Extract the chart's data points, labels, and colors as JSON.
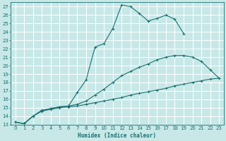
{
  "xlabel": "Humidex (Indice chaleur)",
  "bg_color": "#c8e8e8",
  "grid_color": "#ffffff",
  "line_color": "#1a7070",
  "xlim": [
    -0.5,
    23.5
  ],
  "ylim": [
    13,
    27.5
  ],
  "xticks": [
    0,
    1,
    2,
    3,
    4,
    5,
    6,
    7,
    8,
    9,
    10,
    11,
    12,
    13,
    14,
    15,
    16,
    17,
    18,
    19,
    20,
    21,
    22,
    23
  ],
  "yticks": [
    13,
    14,
    15,
    16,
    17,
    18,
    19,
    20,
    21,
    22,
    23,
    24,
    25,
    26,
    27
  ],
  "curve1_x": [
    0,
    1,
    2,
    3,
    4,
    5,
    6,
    7,
    8,
    9,
    10,
    11,
    12,
    13,
    14,
    15,
    16,
    17,
    18,
    19
  ],
  "curve1_y": [
    13.3,
    13.1,
    14.0,
    14.6,
    14.9,
    15.1,
    15.2,
    16.8,
    18.3,
    22.2,
    22.6,
    24.4,
    27.2,
    27.0,
    26.2,
    25.3,
    25.6,
    26.0,
    25.5,
    23.8
  ],
  "curve2_x": [
    0,
    1,
    2,
    3,
    4,
    5,
    6,
    7,
    8,
    9,
    10,
    11,
    12,
    13,
    14,
    15,
    16,
    17,
    18,
    19,
    20,
    21,
    22,
    23
  ],
  "curve2_y": [
    13.3,
    13.1,
    14.0,
    14.7,
    14.9,
    15.1,
    15.2,
    15.4,
    15.8,
    16.5,
    17.2,
    18.0,
    18.8,
    19.3,
    19.8,
    20.2,
    20.7,
    21.0,
    21.2,
    21.2,
    21.0,
    20.5,
    19.5,
    18.5
  ],
  "curve3_x": [
    0,
    1,
    2,
    3,
    4,
    5,
    6,
    7,
    8,
    9,
    10,
    11,
    12,
    13,
    14,
    15,
    16,
    17,
    18,
    19,
    20,
    21,
    22,
    23
  ],
  "curve3_y": [
    13.3,
    13.1,
    14.0,
    14.6,
    14.8,
    15.0,
    15.1,
    15.2,
    15.4,
    15.6,
    15.8,
    16.0,
    16.2,
    16.5,
    16.7,
    16.9,
    17.1,
    17.3,
    17.6,
    17.8,
    18.0,
    18.2,
    18.4,
    18.5
  ]
}
